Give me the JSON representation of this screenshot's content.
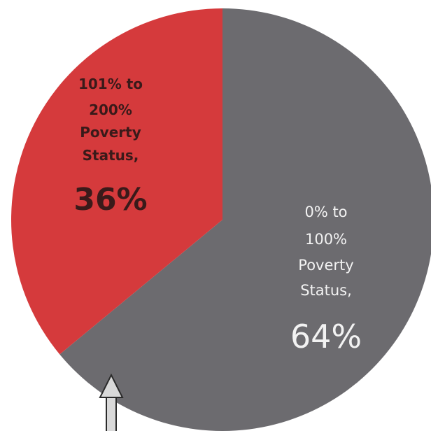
{
  "chart_data": {
    "type": "pie",
    "slices": [
      {
        "label_lines": [
          "0% to",
          "100%",
          "Poverty",
          "Status,"
        ],
        "value_label": "64%",
        "value": 64,
        "color": "#6c6b6f"
      },
      {
        "label_lines": [
          "101% to",
          "200%",
          "Poverty",
          "Status,"
        ],
        "value_label": "36%",
        "value": 36,
        "color": "#d53a3c"
      }
    ],
    "start_angle": "12 o'clock",
    "direction": "clockwise"
  }
}
